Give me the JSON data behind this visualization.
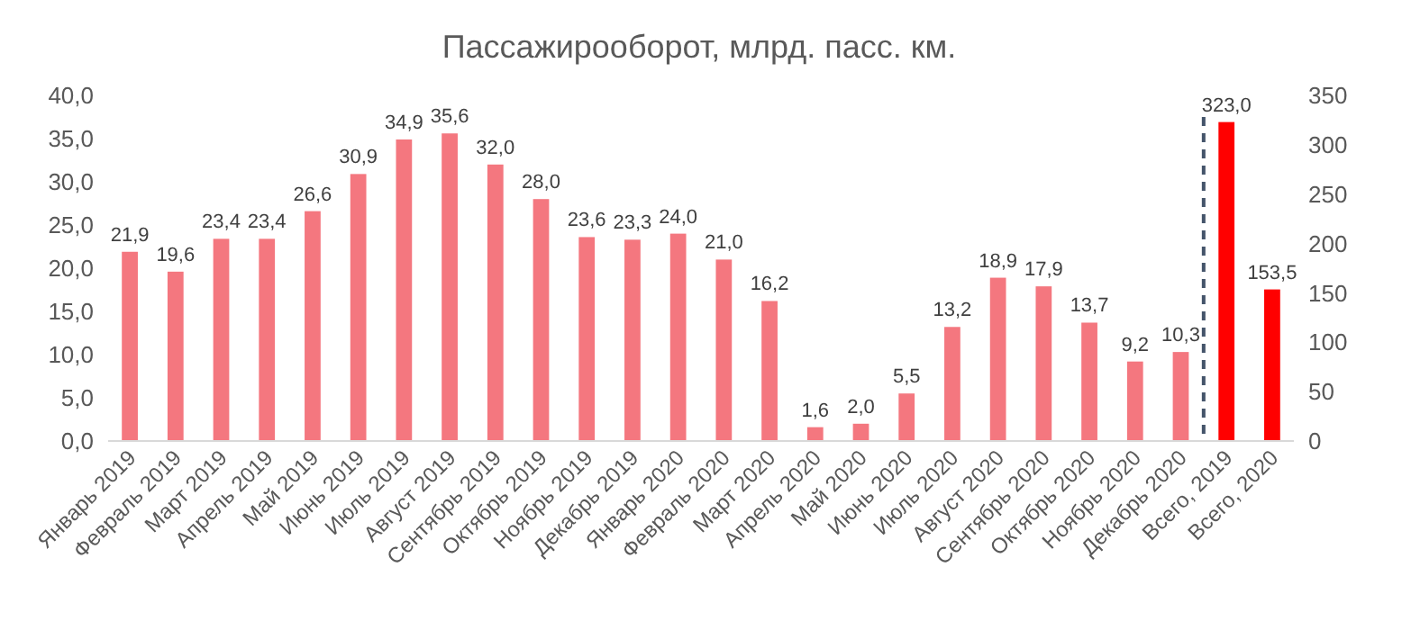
{
  "chart_data": {
    "type": "bar",
    "title": "Пассажирооборот, млрд. пасс. км.",
    "categories": [
      "Январь 2019",
      "Февраль 2019",
      "Март 2019",
      "Апрель 2019",
      "Май 2019",
      "Июнь 2019",
      "Июль 2019",
      "Август 2019",
      "Сентябрь 2019",
      "Октябрь 2019",
      "Ноябрь 2019",
      "Декабрь 2019",
      "Январь 2020",
      "Февраль 2020",
      "Март 2020",
      "Апрель 2020",
      "Май 2020",
      "Июнь 2020",
      "Июль 2020",
      "Август 2020",
      "Сентябрь 2020",
      "Октябрь 2020",
      "Ноябрь 2020",
      "Декабрь 2020",
      "Всего, 2019",
      "Всего, 2020"
    ],
    "series": [
      {
        "color": "#f4777f",
        "values": [
          21.9,
          19.6,
          23.4,
          23.4,
          26.6,
          30.9,
          34.9,
          35.6,
          32.0,
          28.0,
          23.6,
          23.3,
          24.0,
          21.0,
          16.2,
          1.6,
          2.0,
          5.5,
          13.2,
          18.9,
          17.9,
          13.7,
          9.2,
          10.3,
          null,
          null
        ],
        "value_labels": [
          "21,9",
          "19,6",
          "23,4",
          "23,4",
          "26,6",
          "30,9",
          "34,9",
          "35,6",
          "32,0",
          "28,0",
          "23,6",
          "23,3",
          "24,0",
          "21,0",
          "16,2",
          "1,6",
          "2,0",
          "5,5",
          "13,2",
          "18,9",
          "17,9",
          "13,7",
          "9,2",
          "10,3",
          null,
          null
        ]
      },
      {
        "color": "#ff0000",
        "axis": "y2",
        "values": [
          null,
          null,
          null,
          null,
          null,
          null,
          null,
          null,
          null,
          null,
          null,
          null,
          null,
          null,
          null,
          null,
          null,
          null,
          null,
          null,
          null,
          null,
          null,
          null,
          323.0,
          153.5
        ],
        "value_labels": [
          null,
          null,
          null,
          null,
          null,
          null,
          null,
          null,
          null,
          null,
          null,
          null,
          null,
          null,
          null,
          null,
          null,
          null,
          null,
          null,
          null,
          null,
          null,
          null,
          "323,0",
          "153,5"
        ]
      }
    ],
    "ylim": [
      0,
      40
    ],
    "yticks": [
      {
        "value": 0,
        "label": "0,0"
      },
      {
        "value": 5,
        "label": "5,0"
      },
      {
        "value": 10,
        "label": "10,0"
      },
      {
        "value": 15,
        "label": "15,0"
      },
      {
        "value": 20,
        "label": "20,0"
      },
      {
        "value": 25,
        "label": "25,0"
      },
      {
        "value": 30,
        "label": "30,0"
      },
      {
        "value": 35,
        "label": "35,0"
      },
      {
        "value": 40,
        "label": "40,0"
      }
    ],
    "y2lim": [
      0,
      350
    ],
    "y2ticks": [
      0,
      50,
      100,
      150,
      200,
      250,
      300,
      350
    ],
    "grid": false
  }
}
